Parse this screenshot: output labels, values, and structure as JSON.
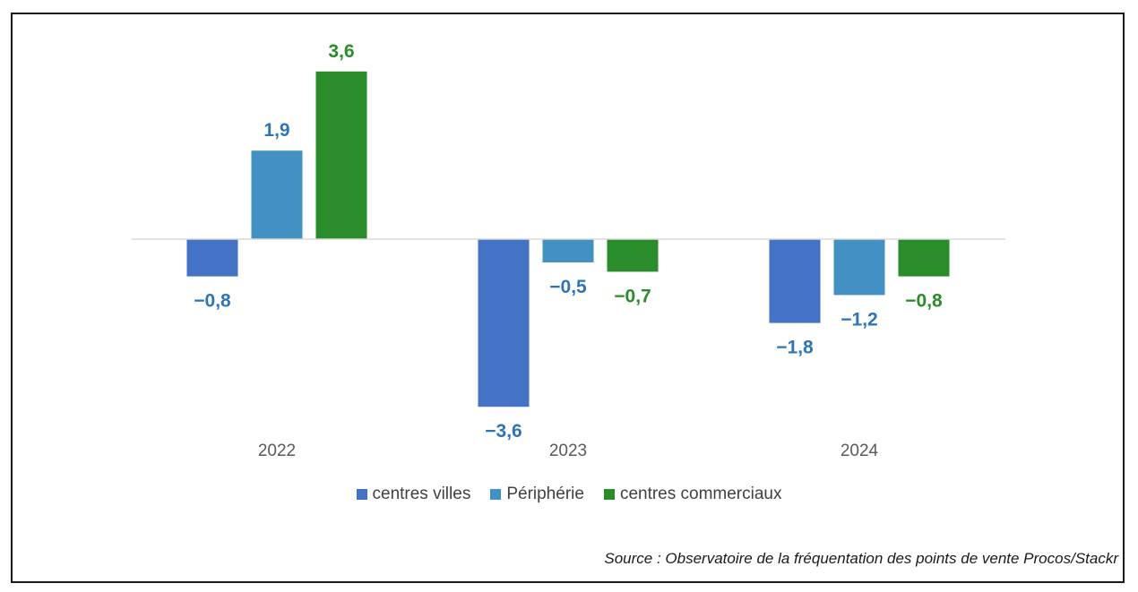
{
  "chart_data": {
    "type": "bar",
    "categories": [
      "2022",
      "2023",
      "2024"
    ],
    "series": [
      {
        "name": "centres villes",
        "values": [
          -0.8,
          -3.6,
          -1.8
        ],
        "labels": [
          "-0,8",
          "-3,6",
          "-1,8"
        ],
        "color": "#4472C4",
        "label_color": "#2E75B6"
      },
      {
        "name": "Périphérie",
        "values": [
          1.9,
          -0.5,
          -1.2
        ],
        "labels": [
          "1,9",
          "-0,5",
          "-1,2"
        ],
        "color": "#4391C2",
        "label_color": "#2E75B6"
      },
      {
        "name": "centres commerciaux",
        "values": [
          3.6,
          -0.7,
          -0.8
        ],
        "labels": [
          "3,6",
          "-0,7",
          "-0,8"
        ],
        "color": "#2A8C2A",
        "label_color": "#2A8C2A"
      }
    ],
    "title": "",
    "xlabel": "",
    "ylabel": "",
    "ylim": [
      -3.6,
      3.6
    ],
    "grid": false,
    "legend_position": "bottom"
  },
  "source_text": "Source : Observatoire de la fréquentation des points de vente Procos/Stackr"
}
